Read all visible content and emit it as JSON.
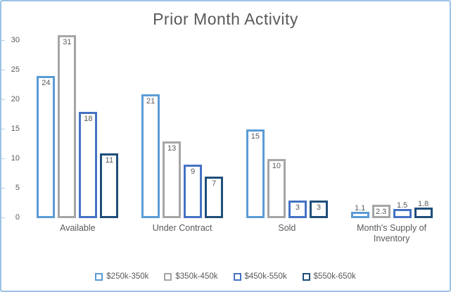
{
  "chart_data": {
    "type": "bar",
    "title": "Prior Month Activity",
    "categories": [
      "Available",
      "Under Contract",
      "Sold",
      "Month's Supply of Inventory"
    ],
    "series": [
      {
        "name": "$250k-350k",
        "color": "#5B9BD5",
        "values": [
          24,
          21,
          15,
          1.1
        ]
      },
      {
        "name": "$350k-450k",
        "color": "#A5A5A5",
        "values": [
          31,
          13,
          10,
          2.3
        ]
      },
      {
        "name": "$450k-550k",
        "color": "#4472C4",
        "values": [
          18,
          9,
          3,
          1.5
        ]
      },
      {
        "name": "$550k-650k",
        "color": "#1F4E79",
        "values": [
          11,
          7,
          3,
          1.8
        ]
      }
    ],
    "yticks": [
      0,
      5,
      10,
      15,
      20,
      25,
      30
    ],
    "ylim": [
      0,
      31
    ],
    "bar_style": "outlined",
    "data_labels": "inside-end",
    "legend_position": "bottom",
    "grid": false
  },
  "frame": {
    "border_color": "#9DC3E6",
    "background": "#FFFFFF",
    "text_color": "#595959"
  }
}
